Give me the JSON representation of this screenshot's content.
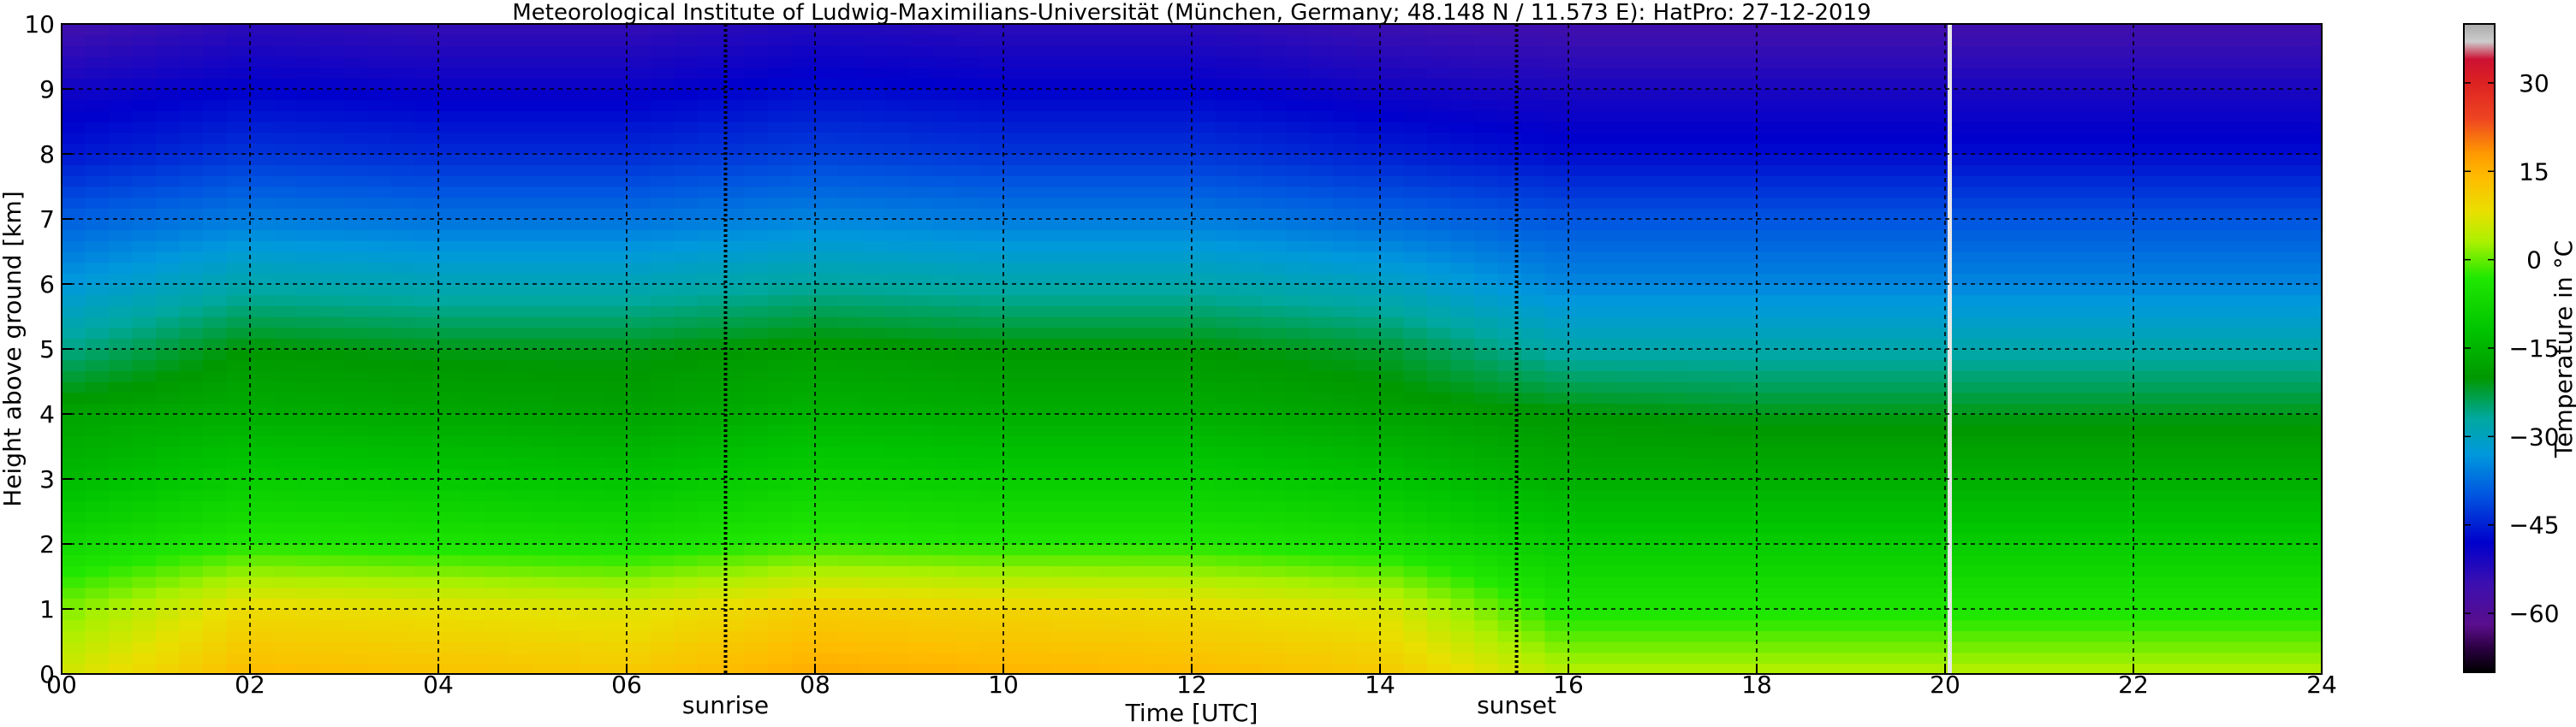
{
  "chart_data": {
    "type": "heatmap",
    "title": "Meteorological Institute of Ludwig-Maximilians-Universität (München, Germany; 48.148 N / 11.573 E):    HatPro: 27-12-2019",
    "xlabel": "Time [UTC]",
    "ylabel": "Height above ground [km]",
    "xlim": [
      0,
      24
    ],
    "ylim": [
      0,
      10
    ],
    "x_ticks": [
      "00",
      "02",
      "04",
      "06",
      "08",
      "10",
      "12",
      "14",
      "16",
      "18",
      "20",
      "22",
      "24"
    ],
    "y_ticks": [
      "0",
      "1",
      "2",
      "3",
      "4",
      "5",
      "6",
      "7",
      "8",
      "9",
      "10"
    ],
    "grid": true,
    "markers": [
      {
        "label": "sunrise",
        "x": 7.05
      },
      {
        "label": "sunset",
        "x": 15.45
      }
    ],
    "data_gap": {
      "x": 20.05
    },
    "colorbar": {
      "label": "Temperature in °C",
      "range": [
        -70,
        40
      ],
      "ticks": [
        "30",
        "15",
        "0",
        "−15",
        "−30",
        "−45",
        "−60"
      ],
      "tick_values": [
        30,
        15,
        0,
        -15,
        -30,
        -45,
        -60
      ],
      "stops": [
        {
          "t": -70,
          "color": "#000000"
        },
        {
          "t": -66,
          "color": "#2a0040"
        },
        {
          "t": -62,
          "color": "#5a0e8c"
        },
        {
          "t": -55,
          "color": "#3c0fb0"
        },
        {
          "t": -48,
          "color": "#0000cc"
        },
        {
          "t": -40,
          "color": "#0055e0"
        },
        {
          "t": -33,
          "color": "#0099dd"
        },
        {
          "t": -27,
          "color": "#00a8a0"
        },
        {
          "t": -20,
          "color": "#009800"
        },
        {
          "t": -12,
          "color": "#00c400"
        },
        {
          "t": -3,
          "color": "#20e800"
        },
        {
          "t": 3,
          "color": "#aaf000"
        },
        {
          "t": 8,
          "color": "#e8e000"
        },
        {
          "t": 14,
          "color": "#ffbb00"
        },
        {
          "t": 18,
          "color": "#ff9900"
        },
        {
          "t": 24,
          "color": "#ee4422"
        },
        {
          "t": 30,
          "color": "#dd2222"
        },
        {
          "t": 34,
          "color": "#cc1133"
        },
        {
          "t": 37,
          "color": "#cccccc"
        },
        {
          "t": 40,
          "color": "#aaaaaa"
        }
      ]
    },
    "temperature_field": {
      "time_utc": [
        "00",
        "02",
        "04",
        "06",
        "08",
        "10",
        "12",
        "14",
        "16",
        "18",
        "20",
        "22",
        "24"
      ],
      "height_km": [
        0,
        1,
        2,
        3,
        4,
        5,
        6,
        7,
        8,
        9,
        10
      ],
      "series": [
        {
          "height_km": 0,
          "values": [
            6,
            14,
            13,
            12,
            16,
            15,
            14,
            12,
            4,
            4,
            4,
            4,
            4
          ]
        },
        {
          "height_km": 1,
          "values": [
            1,
            9,
            8,
            7,
            11,
            10,
            9,
            7,
            -4,
            -4,
            -4,
            -4,
            -4
          ]
        },
        {
          "height_km": 2,
          "values": [
            -7,
            -3,
            -4,
            -5,
            -2,
            -3,
            -3,
            -5,
            -10,
            -10,
            -10,
            -10,
            -10
          ]
        },
        {
          "height_km": 3,
          "values": [
            -14,
            -10,
            -11,
            -12,
            -9,
            -10,
            -10,
            -12,
            -16,
            -16,
            -16,
            -16,
            -16
          ]
        },
        {
          "height_km": 4,
          "values": [
            -18,
            -16,
            -17,
            -18,
            -15,
            -16,
            -16,
            -18,
            -20,
            -21,
            -21,
            -21,
            -21
          ]
        },
        {
          "height_km": 5,
          "values": [
            -26,
            -20,
            -21,
            -21,
            -19,
            -20,
            -20,
            -22,
            -28,
            -28,
            -28,
            -28,
            -28
          ]
        },
        {
          "height_km": 6,
          "values": [
            -33,
            -28,
            -29,
            -29,
            -27,
            -28,
            -28,
            -30,
            -35,
            -35,
            -35,
            -35,
            -35
          ]
        },
        {
          "height_km": 7,
          "values": [
            -39,
            -36,
            -37,
            -37,
            -35,
            -36,
            -36,
            -38,
            -40,
            -40,
            -40,
            -40,
            -40
          ]
        },
        {
          "height_km": 8,
          "values": [
            -46,
            -43,
            -44,
            -44,
            -42,
            -43,
            -43,
            -45,
            -47,
            -47,
            -47,
            -47,
            -47
          ]
        },
        {
          "height_km": 9,
          "values": [
            -50,
            -48,
            -49,
            -49,
            -47,
            -48,
            -48,
            -50,
            -51,
            -51,
            -51,
            -51,
            -51
          ]
        },
        {
          "height_km": 10,
          "values": [
            -56,
            -53,
            -54,
            -54,
            -52,
            -53,
            -53,
            -55,
            -56,
            -56,
            -56,
            -56,
            -56
          ]
        }
      ]
    }
  }
}
